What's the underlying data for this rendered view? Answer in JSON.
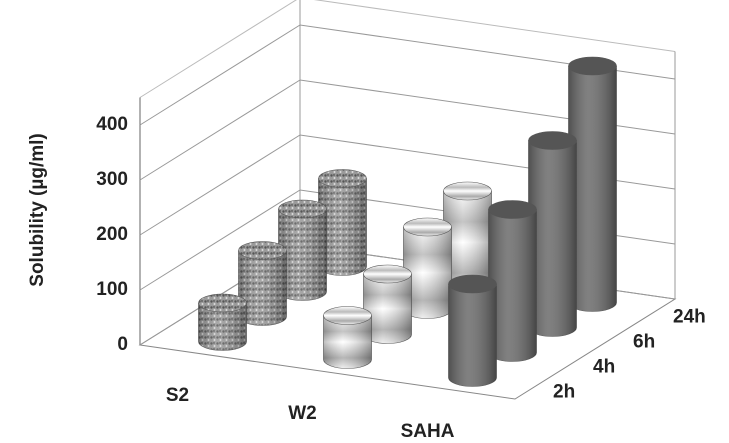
{
  "chart_data": {
    "type": "bar3d",
    "y_axis_label": "Solubility (µg/ml)",
    "categories": [
      "S2",
      "W2",
      "SAHA"
    ],
    "colors": [
      "#8c8c8c",
      "#e6e6e6",
      "#6a6a6a"
    ],
    "series": [
      {
        "name": "2h",
        "values": [
          70,
          80,
          170
        ]
      },
      {
        "name": "4h",
        "values": [
          120,
          110,
          260
        ]
      },
      {
        "name": "6h",
        "values": [
          150,
          150,
          340
        ]
      },
      {
        "name": "24h",
        "values": [
          160,
          170,
          430
        ]
      }
    ],
    "ylim": [
      0,
      450
    ],
    "yticks": [
      0,
      100,
      200,
      300,
      400
    ],
    "grid": true
  }
}
